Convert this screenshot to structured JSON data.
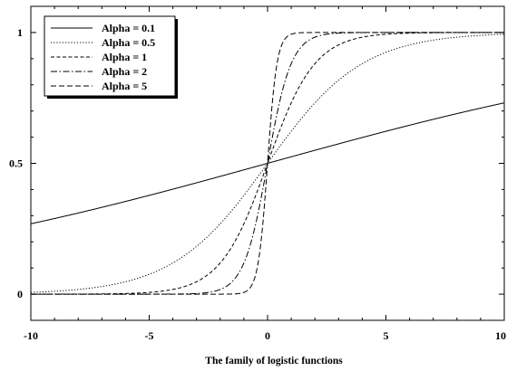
{
  "chart_data": {
    "type": "line",
    "title": "",
    "xlabel": "The family of logistic functions",
    "ylabel": "",
    "xlim": [
      -10,
      10
    ],
    "ylim": [
      -0.1,
      1.1
    ],
    "grid": false,
    "legend_position": "top-left",
    "x_ticks": [
      -10,
      -5,
      0,
      5,
      10
    ],
    "x_tick_labels": [
      "-10",
      "-5",
      "0",
      "5",
      "10"
    ],
    "y_ticks": [
      0,
      0.5,
      1
    ],
    "y_tick_labels": [
      "0",
      "0.5",
      "1"
    ],
    "function": "1 / (1 + exp(-alpha * x))",
    "series": [
      {
        "name": "Alpha = 0.1",
        "alpha": 0.1,
        "dash": "solid"
      },
      {
        "name": "Alpha = 0.5",
        "alpha": 0.5,
        "dash": "dotted"
      },
      {
        "name": "Alpha = 1",
        "alpha": 1,
        "dash": "short-dash"
      },
      {
        "name": "Alpha = 2",
        "alpha": 2,
        "dash": "dash-dot"
      },
      {
        "name": "Alpha = 5",
        "alpha": 5,
        "dash": "long-dash"
      }
    ]
  }
}
